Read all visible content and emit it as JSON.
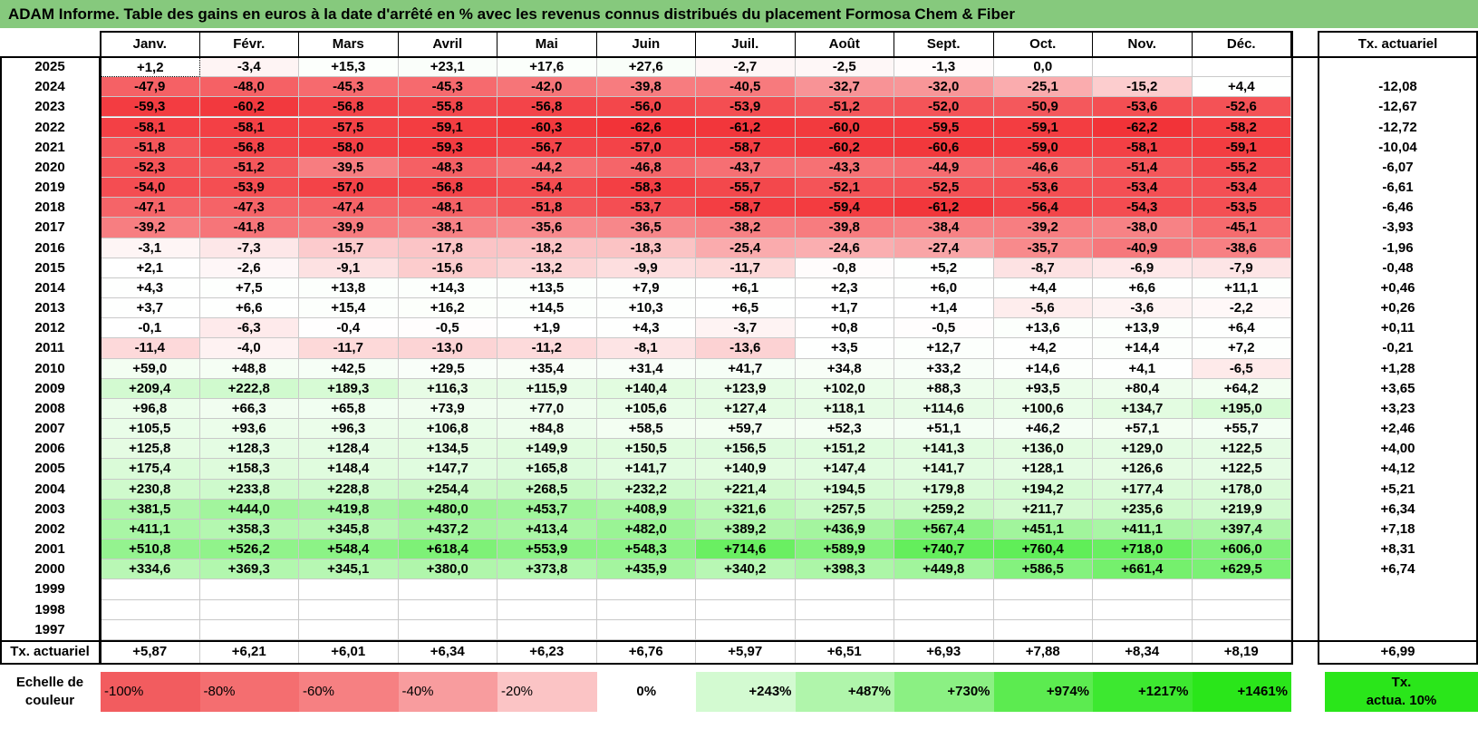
{
  "title": "ADAM Informe. Table des gains en euros à la date d'arrêté en % avec les revenus connus distribués du placement Formosa Chem & Fiber",
  "months": [
    "Janv.",
    "Févr.",
    "Mars",
    "Avril",
    "Mai",
    "Juin",
    "Juil.",
    "Août",
    "Sept.",
    "Oct.",
    "Nov.",
    "Déc."
  ],
  "rate_header": "Tx. actuariel",
  "rows": [
    {
      "year": "2025",
      "values": [
        "+1,2",
        "-3,4",
        "+15,3",
        "+23,1",
        "+17,6",
        "+27,6",
        "-2,7",
        "-2,5",
        "-1,3",
        "0,0",
        "",
        ""
      ],
      "rate": ""
    },
    {
      "year": "2024",
      "values": [
        "-47,9",
        "-48,0",
        "-45,3",
        "-45,3",
        "-42,0",
        "-39,8",
        "-40,5",
        "-32,7",
        "-32,0",
        "-25,1",
        "-15,2",
        "+4,4"
      ],
      "rate": "-12,08"
    },
    {
      "year": "2023",
      "values": [
        "-59,3",
        "-60,2",
        "-56,8",
        "-55,8",
        "-56,8",
        "-56,0",
        "-53,9",
        "-51,2",
        "-52,0",
        "-50,9",
        "-53,6",
        "-52,6"
      ],
      "rate": "-12,67"
    },
    {
      "year": "2022",
      "values": [
        "-58,1",
        "-58,1",
        "-57,5",
        "-59,1",
        "-60,3",
        "-62,6",
        "-61,2",
        "-60,0",
        "-59,5",
        "-59,1",
        "-62,2",
        "-58,2"
      ],
      "rate": "-12,72"
    },
    {
      "year": "2021",
      "values": [
        "-51,8",
        "-56,8",
        "-58,0",
        "-59,3",
        "-56,7",
        "-57,0",
        "-58,7",
        "-60,2",
        "-60,6",
        "-59,0",
        "-58,1",
        "-59,1"
      ],
      "rate": "-10,04"
    },
    {
      "year": "2020",
      "values": [
        "-52,3",
        "-51,2",
        "-39,5",
        "-48,3",
        "-44,2",
        "-46,8",
        "-43,7",
        "-43,3",
        "-44,9",
        "-46,6",
        "-51,4",
        "-55,2"
      ],
      "rate": "-6,07"
    },
    {
      "year": "2019",
      "values": [
        "-54,0",
        "-53,9",
        "-57,0",
        "-56,8",
        "-54,4",
        "-58,3",
        "-55,7",
        "-52,1",
        "-52,5",
        "-53,6",
        "-53,4",
        "-53,4"
      ],
      "rate": "-6,61"
    },
    {
      "year": "2018",
      "values": [
        "-47,1",
        "-47,3",
        "-47,4",
        "-48,1",
        "-51,8",
        "-53,7",
        "-58,7",
        "-59,4",
        "-61,2",
        "-56,4",
        "-54,3",
        "-53,5"
      ],
      "rate": "-6,46"
    },
    {
      "year": "2017",
      "values": [
        "-39,2",
        "-41,8",
        "-39,9",
        "-38,1",
        "-35,6",
        "-36,5",
        "-38,2",
        "-39,8",
        "-38,4",
        "-39,2",
        "-38,0",
        "-45,1"
      ],
      "rate": "-3,93"
    },
    {
      "year": "2016",
      "values": [
        "-3,1",
        "-7,3",
        "-15,7",
        "-17,8",
        "-18,2",
        "-18,3",
        "-25,4",
        "-24,6",
        "-27,4",
        "-35,7",
        "-40,9",
        "-38,6"
      ],
      "rate": "-1,96"
    },
    {
      "year": "2015",
      "values": [
        "+2,1",
        "-2,6",
        "-9,1",
        "-15,6",
        "-13,2",
        "-9,9",
        "-11,7",
        "-0,8",
        "+5,2",
        "-8,7",
        "-6,9",
        "-7,9"
      ],
      "rate": "-0,48"
    },
    {
      "year": "2014",
      "values": [
        "+4,3",
        "+7,5",
        "+13,8",
        "+14,3",
        "+13,5",
        "+7,9",
        "+6,1",
        "+2,3",
        "+6,0",
        "+4,4",
        "+6,6",
        "+11,1"
      ],
      "rate": "+0,46"
    },
    {
      "year": "2013",
      "values": [
        "+3,7",
        "+6,6",
        "+15,4",
        "+16,2",
        "+14,5",
        "+10,3",
        "+6,5",
        "+1,7",
        "+1,4",
        "-5,6",
        "-3,6",
        "-2,2"
      ],
      "rate": "+0,26"
    },
    {
      "year": "2012",
      "values": [
        "-0,1",
        "-6,3",
        "-0,4",
        "-0,5",
        "+1,9",
        "+4,3",
        "-3,7",
        "+0,8",
        "-0,5",
        "+13,6",
        "+13,9",
        "+6,4"
      ],
      "rate": "+0,11"
    },
    {
      "year": "2011",
      "values": [
        "-11,4",
        "-4,0",
        "-11,7",
        "-13,0",
        "-11,2",
        "-8,1",
        "-13,6",
        "+3,5",
        "+12,7",
        "+4,2",
        "+14,4",
        "+7,2"
      ],
      "rate": "-0,21"
    },
    {
      "year": "2010",
      "values": [
        "+59,0",
        "+48,8",
        "+42,5",
        "+29,5",
        "+35,4",
        "+31,4",
        "+41,7",
        "+34,8",
        "+33,2",
        "+14,6",
        "+4,1",
        "-6,5"
      ],
      "rate": "+1,28"
    },
    {
      "year": "2009",
      "values": [
        "+209,4",
        "+222,8",
        "+189,3",
        "+116,3",
        "+115,9",
        "+140,4",
        "+123,9",
        "+102,0",
        "+88,3",
        "+93,5",
        "+80,4",
        "+64,2"
      ],
      "rate": "+3,65"
    },
    {
      "year": "2008",
      "values": [
        "+96,8",
        "+66,3",
        "+65,8",
        "+73,9",
        "+77,0",
        "+105,6",
        "+127,4",
        "+118,1",
        "+114,6",
        "+100,6",
        "+134,7",
        "+195,0"
      ],
      "rate": "+3,23"
    },
    {
      "year": "2007",
      "values": [
        "+105,5",
        "+93,6",
        "+96,3",
        "+106,8",
        "+84,8",
        "+58,5",
        "+59,7",
        "+52,3",
        "+51,1",
        "+46,2",
        "+57,1",
        "+55,7"
      ],
      "rate": "+2,46"
    },
    {
      "year": "2006",
      "values": [
        "+125,8",
        "+128,3",
        "+128,4",
        "+134,5",
        "+149,9",
        "+150,5",
        "+156,5",
        "+151,2",
        "+141,3",
        "+136,0",
        "+129,0",
        "+122,5"
      ],
      "rate": "+4,00"
    },
    {
      "year": "2005",
      "values": [
        "+175,4",
        "+158,3",
        "+148,4",
        "+147,7",
        "+165,8",
        "+141,7",
        "+140,9",
        "+147,4",
        "+141,7",
        "+128,1",
        "+126,6",
        "+122,5"
      ],
      "rate": "+4,12"
    },
    {
      "year": "2004",
      "values": [
        "+230,8",
        "+233,8",
        "+228,8",
        "+254,4",
        "+268,5",
        "+232,2",
        "+221,4",
        "+194,5",
        "+179,8",
        "+194,2",
        "+177,4",
        "+178,0"
      ],
      "rate": "+5,21"
    },
    {
      "year": "2003",
      "values": [
        "+381,5",
        "+444,0",
        "+419,8",
        "+480,0",
        "+453,7",
        "+408,9",
        "+321,6",
        "+257,5",
        "+259,2",
        "+211,7",
        "+235,6",
        "+219,9"
      ],
      "rate": "+6,34"
    },
    {
      "year": "2002",
      "values": [
        "+411,1",
        "+358,3",
        "+345,8",
        "+437,2",
        "+413,4",
        "+482,0",
        "+389,2",
        "+436,9",
        "+567,4",
        "+451,1",
        "+411,1",
        "+397,4"
      ],
      "rate": "+7,18"
    },
    {
      "year": "2001",
      "values": [
        "+510,8",
        "+526,2",
        "+548,4",
        "+618,4",
        "+553,9",
        "+548,3",
        "+714,6",
        "+589,9",
        "+740,7",
        "+760,4",
        "+718,0",
        "+606,0"
      ],
      "rate": "+8,31"
    },
    {
      "year": "2000",
      "values": [
        "+334,6",
        "+369,3",
        "+345,1",
        "+380,0",
        "+373,8",
        "+435,9",
        "+340,2",
        "+398,3",
        "+449,8",
        "+586,5",
        "+661,4",
        "+629,5"
      ],
      "rate": "+6,74"
    },
    {
      "year": "1999",
      "values": [
        "",
        "",
        "",
        "",
        "",
        "",
        "",
        "",
        "",
        "",
        "",
        ""
      ],
      "rate": ""
    },
    {
      "year": "1998",
      "values": [
        "",
        "",
        "",
        "",
        "",
        "",
        "",
        "",
        "",
        "",
        "",
        ""
      ],
      "rate": ""
    },
    {
      "year": "1997",
      "values": [
        "",
        "",
        "",
        "",
        "",
        "",
        "",
        "",
        "",
        "",
        "",
        ""
      ],
      "rate": ""
    }
  ],
  "footer": {
    "label": "Tx. actuariel",
    "values": [
      "+5,87",
      "+6,21",
      "+6,01",
      "+6,34",
      "+6,23",
      "+6,76",
      "+5,97",
      "+6,51",
      "+6,93",
      "+7,88",
      "+8,34",
      "+8,19"
    ],
    "overall": "+6,99"
  },
  "scale": {
    "label_line1": "Echelle de",
    "label_line2": "couleur",
    "items": [
      {
        "text": "-100%",
        "color": "#F25C5F"
      },
      {
        "text": "-80%",
        "color": "#F46E70"
      },
      {
        "text": "-60%",
        "color": "#F68082"
      },
      {
        "text": "-40%",
        "color": "#F89C9E"
      },
      {
        "text": "-20%",
        "color": "#FBC4C5"
      },
      {
        "text": "0%",
        "color": "#FFFFFF"
      },
      {
        "text": "+243%",
        "color": "#D3FAD1"
      },
      {
        "text": "+487%",
        "color": "#B0F5AB"
      },
      {
        "text": "+730%",
        "color": "#8BF083"
      },
      {
        "text": "+974%",
        "color": "#5CEB50"
      },
      {
        "text": "+1217%",
        "color": "#3DE830"
      },
      {
        "text": "+1461%",
        "color": "#2AE61A"
      }
    ],
    "rate_line1": "Tx.",
    "rate_line2": "actua. 10%",
    "rate_color": "#2AE61A"
  },
  "colors": {
    "title_bg": "#86C97D",
    "neg_max": "#F23338",
    "pos_max": "#19E60D"
  }
}
